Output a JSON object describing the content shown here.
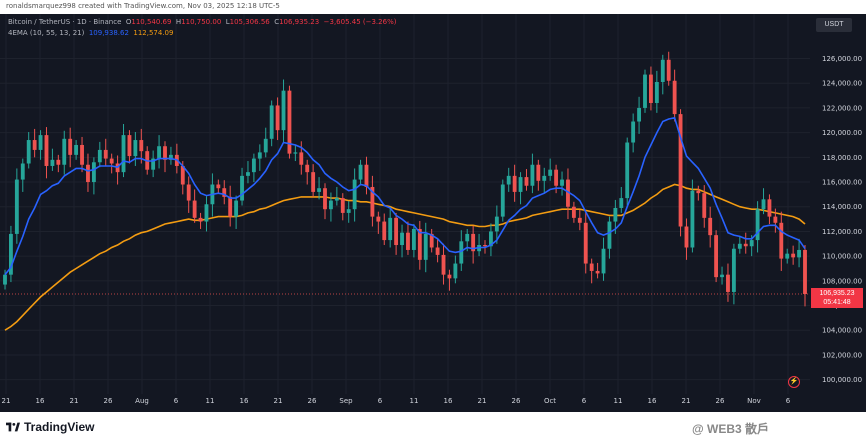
{
  "header": {
    "attribution": "ronaldsmarquez998 created with TradingView.com, Nov 03, 2025 12:18 UTC-5"
  },
  "legend": {
    "symbol": "Bitcoin / TetherUS · 1D · Binance",
    "o_label": "O",
    "o_value": "110,540.69",
    "h_label": "H",
    "h_value": "110,750.00",
    "l_label": "L",
    "l_value": "105,306.56",
    "c_label": "C",
    "c_value": "106,935.23",
    "change": "−3,605.45 (−3.26%)",
    "ema_label": "4EMA (10, 55, 13, 21)",
    "ema_fast_value": "109,938.62",
    "ema_slow_value": "112,574.09"
  },
  "currency": "USDT",
  "last_price": {
    "price": "106,935.23",
    "countdown": "05:41:48"
  },
  "footer": {
    "brand": "TradingView",
    "watermark": "@ WEB3 散戶"
  },
  "colors": {
    "up": "#26a69a",
    "down": "#ef5350",
    "ema_fast": "#2962ff",
    "ema_slow": "#f39c12",
    "background": "#131722",
    "grid": "#1e222d"
  },
  "chart_data": {
    "type": "candlestick",
    "title": "Bitcoin / TetherUS · 1D · Binance",
    "xlabel": "",
    "ylabel": "",
    "grid": true,
    "x_ticks": [
      "21",
      "16",
      "21",
      "26",
      "Aug",
      "6",
      "11",
      "16",
      "21",
      "26",
      "Sep",
      "6",
      "11",
      "16",
      "21",
      "26",
      "Oct",
      "6",
      "11",
      "16",
      "21",
      "26",
      "Nov",
      "6"
    ],
    "y_ticks": [
      100000,
      102000,
      104000,
      106000,
      108000,
      110000,
      112000,
      114000,
      116000,
      118000,
      120000,
      122000,
      124000,
      126000
    ],
    "y_tick_labels": [
      "100,000.00",
      "102,000.00",
      "104,000.00",
      "106,000.00",
      "108,000.00",
      "110,000.00",
      "112,000.00",
      "114,000.00",
      "116,000.00",
      "118,000.00",
      "120,000.00",
      "122,000.00",
      "124,000.00",
      "126,000.00"
    ],
    "ylim": [
      99000,
      127500
    ],
    "closes": [
      108500,
      111800,
      116200,
      117500,
      119400,
      118600,
      119800,
      117300,
      117800,
      117400,
      119500,
      118200,
      119000,
      117400,
      116000,
      117600,
      118600,
      117900,
      117500,
      116800,
      119800,
      118100,
      119400,
      118500,
      117000,
      117900,
      118900,
      117800,
      118200,
      117300,
      115800,
      114500,
      113100,
      112800,
      114200,
      115800,
      115500,
      114800,
      113200,
      114500,
      116500,
      116800,
      117900,
      118400,
      119500,
      122200,
      120200,
      123400,
      118300,
      118400,
      117400,
      116800,
      115200,
      115500,
      113800,
      114500,
      114700,
      113500,
      113800,
      116200,
      117400,
      115600,
      113200,
      112800,
      111300,
      113100,
      110900,
      111900,
      110500,
      112200,
      109700,
      111800,
      110700,
      110100,
      108500,
      108200,
      109400,
      111200,
      111800,
      110400,
      110900,
      110800,
      112000,
      113200,
      115800,
      116500,
      115200,
      116400,
      115700,
      117400,
      116100,
      116500,
      117000,
      115700,
      116200,
      114000,
      113100,
      112700,
      109400,
      108800,
      108600,
      110600,
      112800,
      113900,
      114700,
      119200,
      120900,
      122000,
      124700,
      122400,
      124100,
      125900,
      124200,
      121500,
      112400,
      110700,
      115300,
      115100,
      113100,
      111700,
      108300,
      108500,
      107100,
      110600,
      111000,
      110800,
      111300,
      113800,
      114600,
      113200,
      112700,
      109800,
      110200,
      109900,
      110500,
      106935
    ],
    "ema_fast": [
      108500,
      109100,
      110400,
      111600,
      113000,
      113900,
      115000,
      115300,
      115700,
      115900,
      116500,
      116800,
      117100,
      117100,
      116900,
      117000,
      117300,
      117300,
      117300,
      117200,
      117700,
      117600,
      117900,
      117900,
      117700,
      117700,
      117900,
      117900,
      117900,
      117800,
      117300,
      116700,
      115800,
      115100,
      114900,
      115000,
      115100,
      115000,
      114700,
      114700,
      115000,
      115400,
      115800,
      116300,
      116900,
      117800,
      118300,
      119200,
      119100,
      119000,
      118800,
      118400,
      117800,
      117400,
      116700,
      116300,
      116000,
      115600,
      115300,
      115400,
      115800,
      115700,
      115200,
      114800,
      114100,
      113900,
      113300,
      113000,
      112600,
      112500,
      111900,
      111900,
      111700,
      111400,
      110900,
      110400,
      110300,
      110400,
      110700,
      110600,
      110700,
      110700,
      110900,
      111300,
      112100,
      112900,
      113300,
      113800,
      114100,
      114700,
      114900,
      115100,
      115400,
      115500,
      115500,
      115200,
      114900,
      114500,
      113600,
      112700,
      111900,
      111700,
      111900,
      112200,
      112700,
      114000,
      115200,
      116500,
      118000,
      119000,
      120000,
      120900,
      121100,
      121200,
      119600,
      118100,
      117600,
      117100,
      116300,
      115500,
      114200,
      113100,
      111900,
      111700,
      111600,
      111400,
      111400,
      111900,
      112400,
      112500,
      112500,
      112000,
      111700,
      111500,
      111300,
      110600
    ],
    "ema_slow": [
      104000,
      104300,
      104700,
      105200,
      105700,
      106200,
      106700,
      107100,
      107500,
      107900,
      108300,
      108700,
      109000,
      109300,
      109600,
      109900,
      110200,
      110400,
      110700,
      110900,
      111200,
      111400,
      111700,
      111900,
      112000,
      112200,
      112400,
      112600,
      112700,
      112800,
      112900,
      113000,
      112900,
      112900,
      113000,
      113100,
      113200,
      113200,
      113200,
      113200,
      113300,
      113500,
      113600,
      113800,
      113900,
      114100,
      114300,
      114500,
      114600,
      114700,
      114800,
      114800,
      114800,
      114800,
      114800,
      114700,
      114700,
      114600,
      114500,
      114500,
      114400,
      114400,
      114300,
      114200,
      114100,
      114000,
      113800,
      113700,
      113600,
      113500,
      113400,
      113300,
      113200,
      113100,
      113000,
      112800,
      112700,
      112600,
      112500,
      112500,
      112400,
      112400,
      112500,
      112500,
      112600,
      112800,
      112900,
      113000,
      113100,
      113300,
      113400,
      113500,
      113600,
      113700,
      113800,
      113800,
      113800,
      113800,
      113700,
      113600,
      113500,
      113400,
      113300,
      113300,
      113300,
      113500,
      113700,
      114000,
      114300,
      114700,
      115000,
      115400,
      115600,
      115800,
      115700,
      115500,
      115400,
      115400,
      115200,
      115000,
      114800,
      114600,
      114400,
      114200,
      114000,
      113900,
      113800,
      113800,
      113700,
      113600,
      113500,
      113400,
      113300,
      113200,
      113000,
      112600
    ],
    "last_close": 106935.23,
    "series": [
      {
        "name": "BTCUSDT"
      },
      {
        "name": "EMA 10"
      },
      {
        "name": "EMA 55"
      }
    ]
  }
}
